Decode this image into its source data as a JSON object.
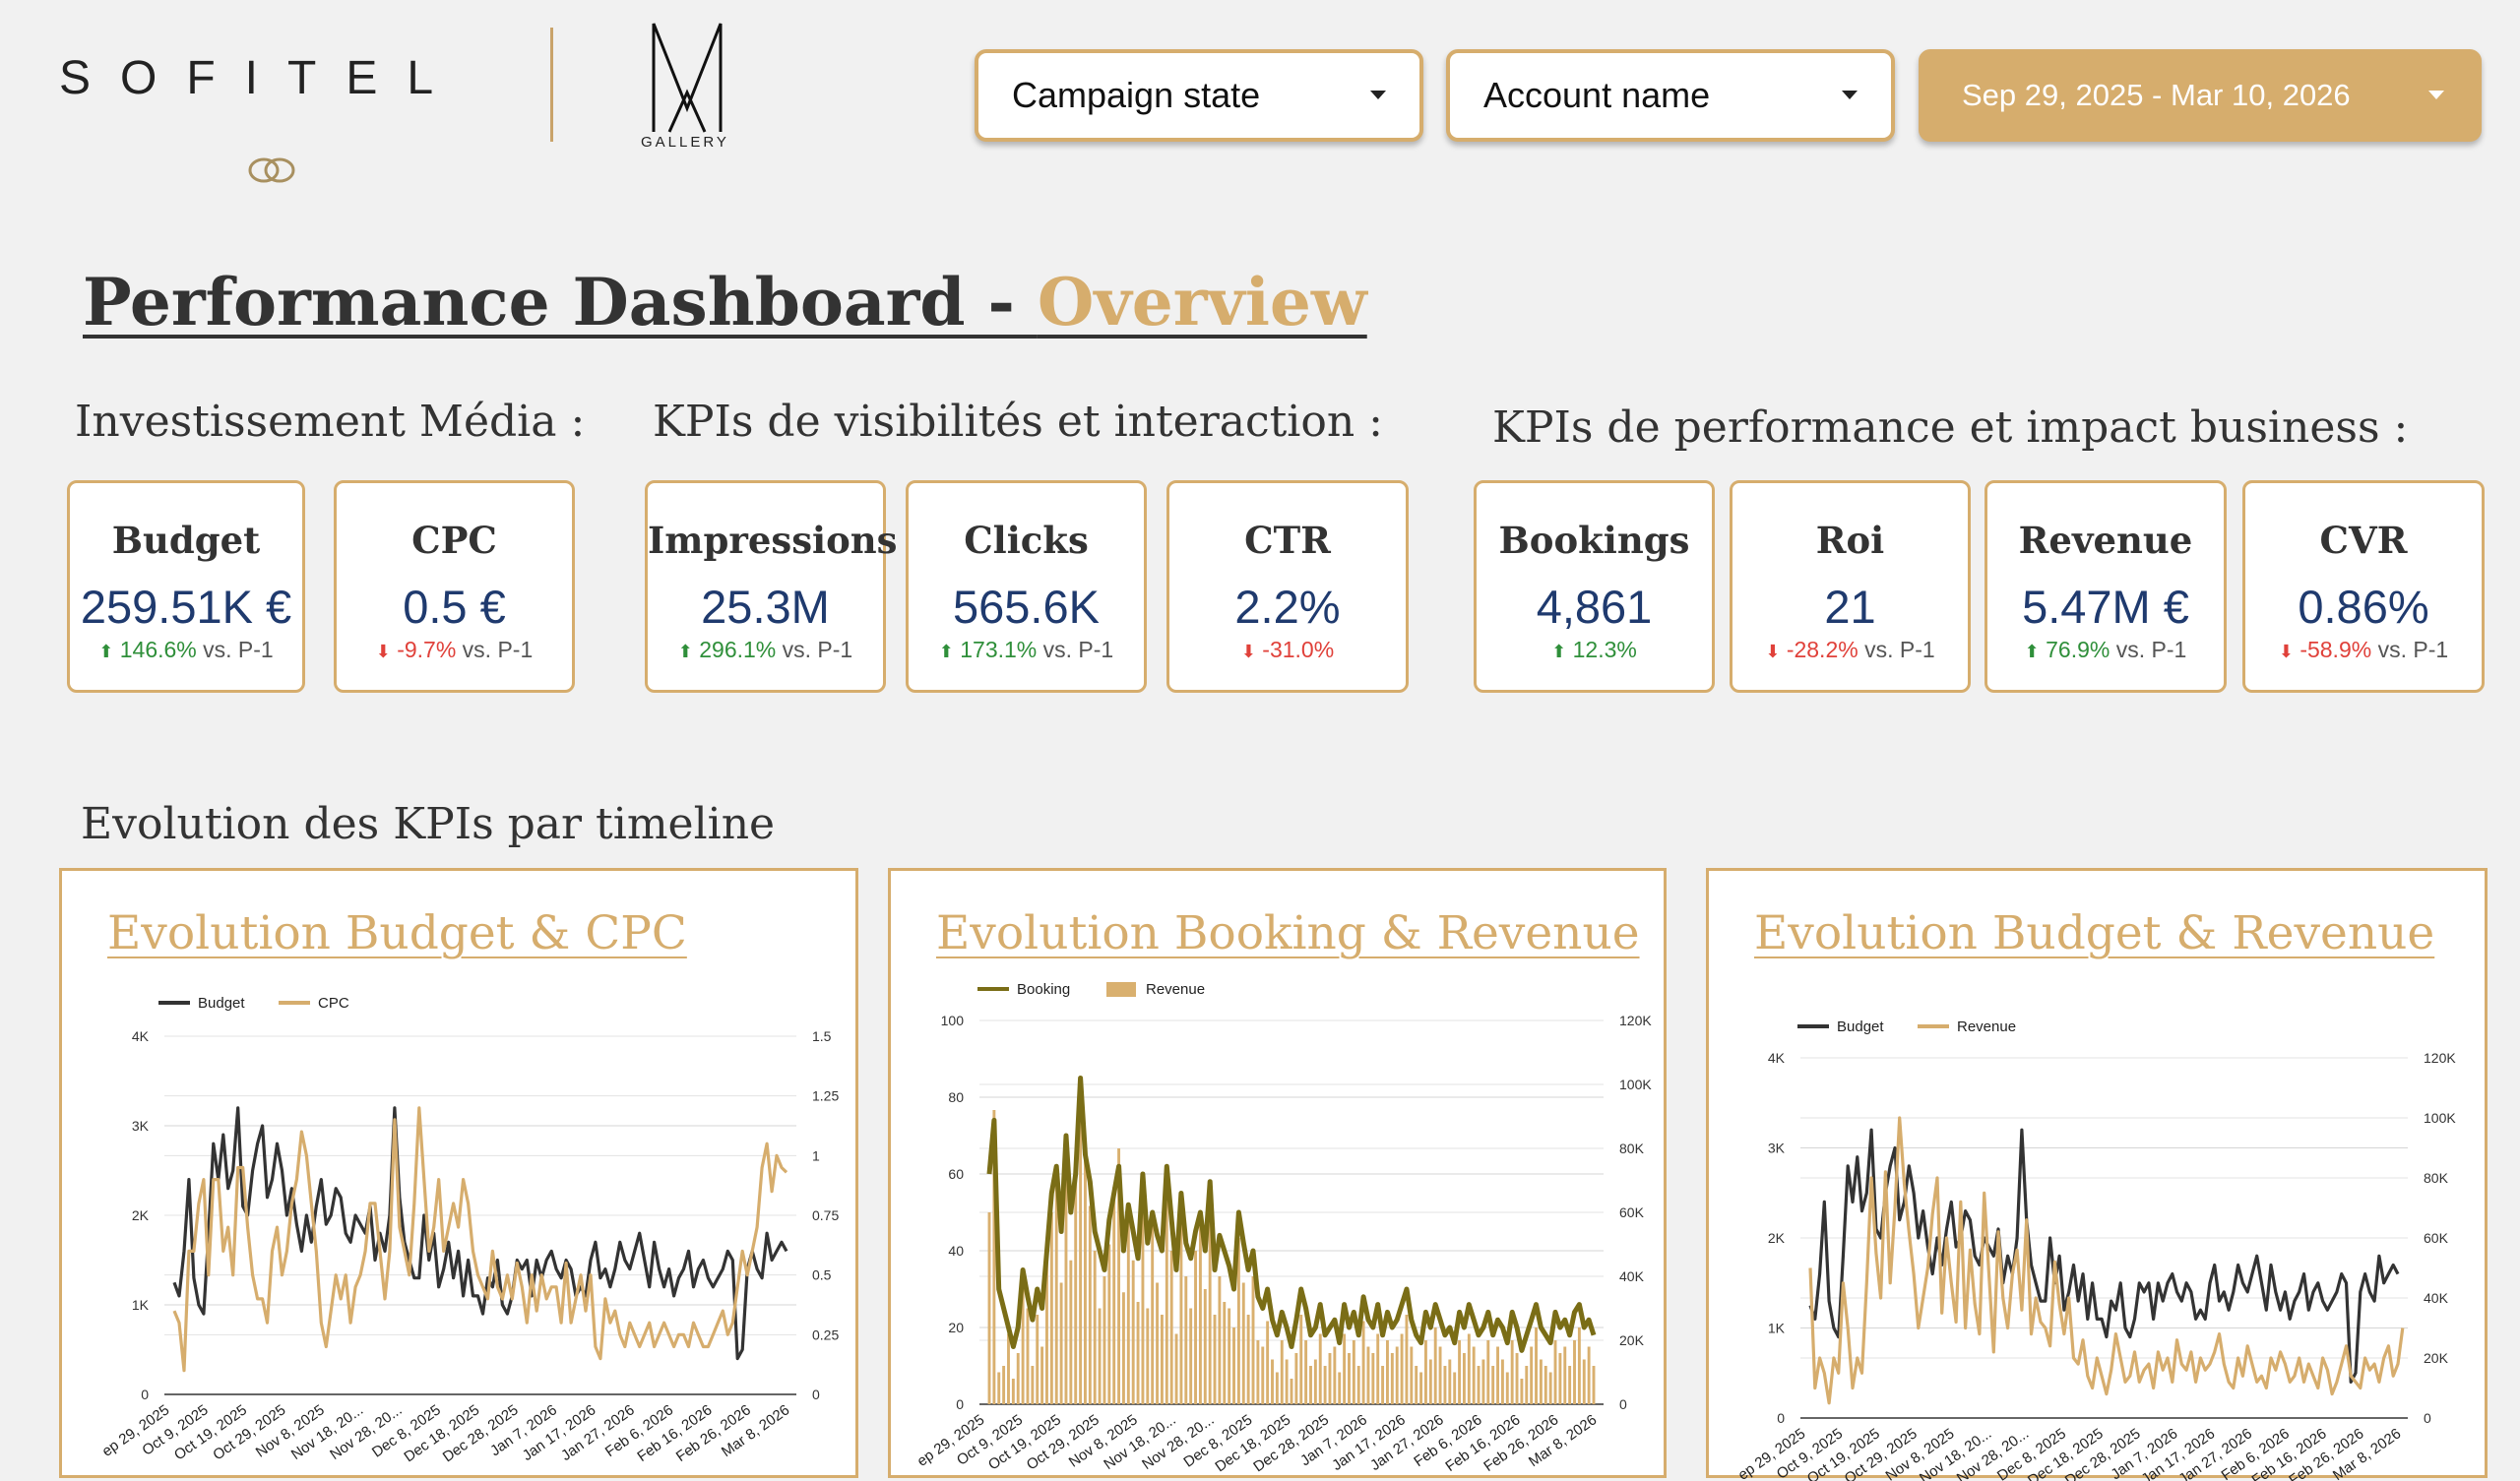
{
  "brand": {
    "sofitel": "SOFITEL",
    "mgallery": "GALLERY"
  },
  "filters": {
    "campaign_state": "Campaign state",
    "account_name": "Account name",
    "date_range": "Sep 29, 2025 - Mar 10, 2026"
  },
  "title": {
    "main": "Performance Dashboard - ",
    "accent": "Overview"
  },
  "sections": {
    "media": "Investissement Média :",
    "visibility": "KPIs de visibilités et interaction :",
    "performance": "KPIs de performance et impact business :",
    "timeline": "Evolution des KPIs par timeline"
  },
  "kpis": {
    "budget": {
      "label": "Budget",
      "value": "259.51K €",
      "delta": "146.6%",
      "suffix": " vs. P-1",
      "dir": "up"
    },
    "cpc": {
      "label": "CPC",
      "value": "0.5 €",
      "delta": "-9.7%",
      "suffix": " vs. P-1",
      "dir": "down"
    },
    "impressions": {
      "label": "Impressions",
      "value": "25.3M",
      "delta": "296.1%",
      "suffix": " vs. P-1",
      "dir": "up"
    },
    "clicks": {
      "label": "Clicks",
      "value": "565.6K",
      "delta": "173.1%",
      "suffix": " vs. P-1",
      "dir": "up"
    },
    "ctr": {
      "label": "CTR",
      "value": "2.2%",
      "delta": "-31.0%",
      "suffix": "",
      "dir": "down"
    },
    "bookings": {
      "label": "Bookings",
      "value": "4,861",
      "delta": "12.3%",
      "suffix": "",
      "dir": "up"
    },
    "roi": {
      "label": "Roi",
      "value": "21",
      "delta": "-28.2%",
      "suffix": " vs. P-1",
      "dir": "down"
    },
    "revenue": {
      "label": "Revenue",
      "value": "5.47M €",
      "delta": "76.9%",
      "suffix": " vs. P-1",
      "dir": "up"
    },
    "cvr": {
      "label": "CVR",
      "value": "0.86%",
      "delta": "-58.9%",
      "suffix": " vs. P-1",
      "dir": "down"
    }
  },
  "colors": {
    "gold": "#d6ad6d",
    "dark_line": "#333333",
    "olive": "#7a6d16",
    "bar_gold": "#d9b06f",
    "navy_value": "#1f3a6e",
    "positive": "#2f8f3a",
    "negative": "#e0413a"
  },
  "chart_data": [
    {
      "id": "budget_cpc",
      "type": "line",
      "title": "Evolution Budget & CPC",
      "x_ticks": [
        "ep 29, 2025",
        "Oct 9, 2025",
        "Oct 19, 2025",
        "Oct 29, 2025",
        "Nov 8, 2025",
        "Nov 18, 20...",
        "Nov 28, 20...",
        "Dec 8, 2025",
        "Dec 18, 2025",
        "Dec 28, 2025",
        "Jan 7, 2026",
        "Jan 17, 2026",
        "Jan 27, 2026",
        "Feb 6, 2026",
        "Feb 16, 2026",
        "Feb 26, 2026",
        "Mar 8, 2026"
      ],
      "y_left": {
        "ticks": [
          "0",
          "1K",
          "2K",
          "3K",
          "4K"
        ],
        "range": [
          0,
          4000
        ]
      },
      "y_right": {
        "ticks": [
          "0",
          "0.25",
          "0.5",
          "0.75",
          "1",
          "1.25",
          "1.5"
        ],
        "range": [
          0,
          1.5
        ]
      },
      "legend_position": "top-left",
      "series": [
        {
          "name": "Budget",
          "axis": "left",
          "color": "#333333",
          "style": "line",
          "values": [
            1250,
            1100,
            1600,
            2400,
            1300,
            1000,
            900,
            1800,
            2800,
            2400,
            2900,
            2300,
            2500,
            3200,
            2100,
            2000,
            2500,
            2800,
            3000,
            2200,
            2400,
            2800,
            2500,
            2000,
            2300,
            1900,
            1600,
            2000,
            1700,
            2100,
            2400,
            1900,
            2000,
            2300,
            2200,
            1800,
            1700,
            2000,
            1900,
            1800,
            2100,
            1500,
            1800,
            1600,
            2000,
            3200,
            2200,
            1700,
            1500,
            1300,
            1300,
            2000,
            1500,
            1800,
            1200,
            1400,
            1700,
            1300,
            1600,
            1100,
            1500,
            1100,
            1100,
            900,
            1300,
            1200,
            1500,
            1000,
            900,
            1100,
            1500,
            1400,
            1500,
            1100,
            1500,
            1300,
            1500,
            1600,
            1400,
            1300,
            1500,
            1400,
            1100,
            1200,
            1100,
            1500,
            1700,
            1300,
            1400,
            1200,
            1400,
            1700,
            1500,
            1400,
            1600,
            1800,
            1500,
            1200,
            1700,
            1400,
            1200,
            1400,
            1100,
            1300,
            1400,
            1600,
            1200,
            1400,
            1500,
            1300,
            1200,
            1300,
            1400,
            1600,
            1500,
            400,
            500,
            1400,
            1600,
            1400,
            1300,
            1800,
            1500,
            1600,
            1700,
            1600
          ]
        },
        {
          "name": "CPC",
          "axis": "right",
          "color": "#d6ad6d",
          "style": "line",
          "values": [
            0.35,
            0.3,
            0.1,
            0.6,
            0.6,
            0.8,
            0.9,
            0.5,
            0.9,
            0.9,
            0.6,
            0.7,
            0.5,
            0.95,
            0.95,
            0.7,
            0.5,
            0.4,
            0.4,
            0.3,
            0.6,
            0.7,
            0.5,
            0.6,
            0.8,
            0.9,
            1.1,
            1.0,
            0.8,
            0.6,
            0.3,
            0.2,
            0.35,
            0.5,
            0.4,
            0.5,
            0.3,
            0.45,
            0.5,
            0.6,
            0.8,
            0.8,
            0.6,
            0.4,
            0.6,
            1.15,
            0.7,
            0.6,
            0.5,
            0.8,
            1.2,
            0.9,
            0.6,
            0.7,
            0.9,
            0.6,
            0.7,
            0.8,
            0.7,
            0.9,
            0.8,
            0.6,
            0.5,
            0.45,
            0.4,
            0.6,
            0.45,
            0.4,
            0.5,
            0.4,
            0.55,
            0.45,
            0.3,
            0.5,
            0.35,
            0.5,
            0.4,
            0.45,
            0.45,
            0.3,
            0.55,
            0.3,
            0.4,
            0.5,
            0.35,
            0.5,
            0.2,
            0.15,
            0.4,
            0.3,
            0.35,
            0.25,
            0.2,
            0.3,
            0.25,
            0.2,
            0.25,
            0.3,
            0.2,
            0.25,
            0.3,
            0.25,
            0.2,
            0.25,
            0.25,
            0.2,
            0.3,
            0.25,
            0.2,
            0.2,
            0.25,
            0.3,
            0.35,
            0.25,
            0.3,
            0.45,
            0.6,
            0.5,
            0.6,
            0.7,
            0.95,
            1.05,
            0.85,
            1.0,
            0.95,
            0.93
          ]
        }
      ]
    },
    {
      "id": "booking_revenue",
      "type": "bar",
      "title": "Evolution Booking & Revenue",
      "x_ticks": [
        "ep 29, 2025",
        "Oct 9, 2025",
        "Oct 19, 2025",
        "Oct 29, 2025",
        "Nov 8, 2025",
        "Nov 18, 20...",
        "Nov 28, 20...",
        "Dec 8, 2025",
        "Dec 18, 2025",
        "Dec 28, 2025",
        "Jan 7, 2026",
        "Jan 17, 2026",
        "Jan 27, 2026",
        "Feb 6, 2026",
        "Feb 16, 2026",
        "Feb 26, 2026",
        "Mar 8, 2026"
      ],
      "y_left": {
        "ticks": [
          "0",
          "20",
          "40",
          "60",
          "80",
          "100"
        ],
        "range": [
          0,
          100
        ]
      },
      "y_right": {
        "ticks": [
          "0",
          "20K",
          "40K",
          "60K",
          "80K",
          "100K",
          "120K"
        ],
        "range": [
          0,
          120000
        ]
      },
      "legend_position": "top-left",
      "series": [
        {
          "name": "Booking",
          "axis": "left",
          "color": "#7a6d16",
          "style": "line",
          "values": [
            60,
            74,
            30,
            25,
            20,
            15,
            20,
            35,
            28,
            22,
            30,
            25,
            40,
            55,
            62,
            45,
            70,
            50,
            60,
            85,
            65,
            58,
            45,
            40,
            35,
            48,
            55,
            62,
            40,
            52,
            45,
            38,
            60,
            42,
            50,
            44,
            40,
            62,
            48,
            35,
            55,
            42,
            38,
            45,
            50,
            40,
            58,
            35,
            44,
            40,
            36,
            30,
            50,
            42,
            35,
            40,
            28,
            25,
            30,
            22,
            18,
            24,
            20,
            15,
            22,
            30,
            25,
            18,
            20,
            26,
            18,
            20,
            22,
            16,
            26,
            20,
            24,
            18,
            28,
            22,
            20,
            26,
            18,
            24,
            20,
            22,
            26,
            30,
            22,
            18,
            16,
            24,
            20,
            26,
            22,
            18,
            20,
            16,
            24,
            20,
            26,
            22,
            18,
            20,
            24,
            18,
            22,
            20,
            16,
            24,
            20,
            14,
            18,
            22,
            26,
            20,
            18,
            16,
            24,
            20,
            22,
            18,
            24,
            26,
            20,
            22,
            18
          ]
        },
        {
          "name": "Revenue",
          "axis": "right",
          "color": "#d9b06f",
          "style": "bar",
          "values": [
            60000,
            92000,
            10000,
            12000,
            22000,
            8000,
            16000,
            42000,
            30000,
            12000,
            28000,
            18000,
            45000,
            60000,
            74000,
            38000,
            82000,
            45000,
            70000,
            100000,
            78000,
            62000,
            48000,
            30000,
            40000,
            50000,
            68000,
            80000,
            35000,
            60000,
            45000,
            32000,
            72000,
            30000,
            56000,
            38000,
            28000,
            75000,
            48000,
            22000,
            62000,
            40000,
            30000,
            48000,
            56000,
            36000,
            66000,
            28000,
            40000,
            32000,
            30000,
            24000,
            52000,
            38000,
            28000,
            40000,
            20000,
            18000,
            26000,
            14000,
            10000,
            20000,
            14000,
            8000,
            16000,
            28000,
            20000,
            12000,
            14000,
            22000,
            12000,
            16000,
            18000,
            10000,
            22000,
            16000,
            20000,
            12000,
            26000,
            18000,
            16000,
            22000,
            12000,
            20000,
            16000,
            18000,
            22000,
            28000,
            18000,
            12000,
            10000,
            20000,
            14000,
            24000,
            18000,
            12000,
            14000,
            10000,
            20000,
            16000,
            22000,
            18000,
            12000,
            14000,
            20000,
            12000,
            18000,
            14000,
            10000,
            20000,
            16000,
            8000,
            12000,
            18000,
            24000,
            14000,
            12000,
            10000,
            20000,
            16000,
            18000,
            12000,
            20000,
            24000,
            14000,
            18000,
            12000
          ]
        }
      ]
    },
    {
      "id": "budget_revenue",
      "type": "line",
      "title": "Evolution Budget & Revenue",
      "x_ticks": [
        "ep 29, 2025",
        "Oct 9, 2025",
        "Oct 19, 2025",
        "Oct 29, 2025",
        "Nov 8, 2025",
        "Nov 18, 20...",
        "Nov 28, 20...",
        "Dec 8, 2025",
        "Dec 18, 2025",
        "Dec 28, 2025",
        "Jan 7, 2026",
        "Jan 17, 2026",
        "Jan 27, 2026",
        "Feb 6, 2026",
        "Feb 16, 2026",
        "Feb 26, 2026",
        "Mar 8, 2026"
      ],
      "y_left": {
        "ticks": [
          "0",
          "1K",
          "2K",
          "3K",
          "4K"
        ],
        "range": [
          0,
          4000
        ]
      },
      "y_right": {
        "ticks": [
          "0",
          "20K",
          "40K",
          "60K",
          "80K",
          "100K",
          "120K"
        ],
        "range": [
          0,
          120000
        ]
      },
      "legend_position": "top-left",
      "series": [
        {
          "name": "Budget",
          "axis": "left",
          "color": "#333333",
          "style": "line",
          "values": [
            1250,
            1100,
            1600,
            2400,
            1300,
            1000,
            900,
            1800,
            2800,
            2400,
            2900,
            2300,
            2500,
            3200,
            2100,
            2000,
            2500,
            2800,
            3000,
            2200,
            2400,
            2800,
            2500,
            2000,
            2300,
            1900,
            1600,
            2000,
            1700,
            2100,
            2400,
            1900,
            2000,
            2300,
            2200,
            1800,
            1700,
            2000,
            1900,
            1800,
            2100,
            1500,
            1800,
            1600,
            2000,
            3200,
            2200,
            1700,
            1500,
            1300,
            1300,
            2000,
            1500,
            1800,
            1200,
            1400,
            1700,
            1300,
            1600,
            1100,
            1500,
            1100,
            1100,
            900,
            1300,
            1200,
            1500,
            1000,
            900,
            1100,
            1500,
            1400,
            1500,
            1100,
            1500,
            1300,
            1500,
            1600,
            1400,
            1300,
            1500,
            1400,
            1100,
            1200,
            1100,
            1500,
            1700,
            1300,
            1400,
            1200,
            1400,
            1700,
            1500,
            1400,
            1600,
            1800,
            1500,
            1200,
            1700,
            1400,
            1200,
            1400,
            1100,
            1300,
            1400,
            1600,
            1200,
            1400,
            1500,
            1300,
            1200,
            1300,
            1400,
            1600,
            1500,
            400,
            500,
            1400,
            1600,
            1400,
            1300,
            1800,
            1500,
            1600,
            1700,
            1600
          ]
        },
        {
          "name": "Revenue",
          "axis": "right",
          "color": "#d6ad6d",
          "style": "line",
          "values": [
            50000,
            10000,
            20000,
            15000,
            5000,
            20000,
            15000,
            45000,
            30000,
            10000,
            20000,
            15000,
            45000,
            80000,
            55000,
            40000,
            82000,
            45000,
            70000,
            100000,
            78000,
            62000,
            48000,
            30000,
            40000,
            50000,
            68000,
            80000,
            35000,
            60000,
            45000,
            32000,
            72000,
            30000,
            56000,
            38000,
            28000,
            75000,
            48000,
            22000,
            62000,
            40000,
            30000,
            48000,
            56000,
            36000,
            66000,
            28000,
            40000,
            32000,
            30000,
            24000,
            52000,
            38000,
            28000,
            40000,
            20000,
            18000,
            26000,
            14000,
            10000,
            20000,
            14000,
            8000,
            16000,
            28000,
            20000,
            12000,
            14000,
            22000,
            12000,
            16000,
            18000,
            10000,
            22000,
            16000,
            20000,
            12000,
            26000,
            18000,
            16000,
            22000,
            12000,
            20000,
            16000,
            18000,
            22000,
            28000,
            18000,
            12000,
            10000,
            20000,
            14000,
            24000,
            18000,
            12000,
            14000,
            10000,
            20000,
            16000,
            22000,
            18000,
            12000,
            14000,
            20000,
            12000,
            18000,
            14000,
            10000,
            20000,
            16000,
            8000,
            12000,
            18000,
            24000,
            14000,
            12000,
            10000,
            20000,
            16000,
            18000,
            12000,
            20000,
            24000,
            14000,
            18000,
            30000
          ]
        }
      ]
    }
  ]
}
